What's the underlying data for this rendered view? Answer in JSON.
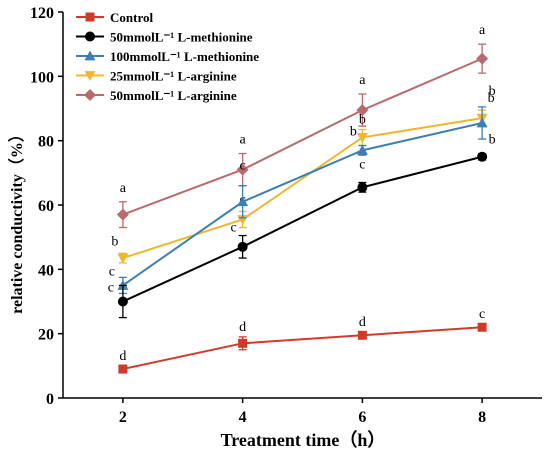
{
  "chart_data": {
    "type": "line",
    "xlabel": "Treatment time（h）",
    "ylabel": "relative conductivity（%）",
    "x": [
      2,
      4,
      6,
      8
    ],
    "xticks": [
      "2",
      "4",
      "6",
      "8"
    ],
    "xlim": [
      1,
      9
    ],
    "ylim": [
      0,
      120
    ],
    "yticks": [
      "0",
      "20",
      "40",
      "60",
      "80",
      "100",
      "120"
    ],
    "grid": false,
    "legend_position": "top-left",
    "series": [
      {
        "name": "Control",
        "legend_label": "Control",
        "color": "#d03a2c",
        "marker": "square",
        "values": [
          9,
          17,
          19.5,
          22
        ],
        "errors": [
          1,
          2,
          1,
          1
        ],
        "letters": [
          "d",
          "d",
          "d",
          "c"
        ]
      },
      {
        "name": "50mmolL-1 L-methionine",
        "legend_label": "50mmolL⁻¹  L-methionine",
        "color": "#000000",
        "marker": "circle",
        "values": [
          30,
          47,
          65.5,
          75
        ],
        "errors": [
          5,
          3.5,
          1.5,
          1
        ],
        "letters": [
          "c",
          "c",
          "c",
          "b"
        ]
      },
      {
        "name": "100mmolL-1 L-methionine",
        "legend_label": "100mmolL⁻¹  L-methionine",
        "color": "#3d7fb3",
        "marker": "triangle-up",
        "values": [
          35,
          61,
          77,
          85.5
        ],
        "errors": [
          2.5,
          5,
          1.5,
          5
        ],
        "letters": [
          "c",
          "c",
          "b",
          "b"
        ]
      },
      {
        "name": "25mmolL-1 L-arginine",
        "legend_label": "25mmolL⁻¹   L-arginine",
        "color": "#f0b72e",
        "marker": "triangle-down",
        "values": [
          43.5,
          55.5,
          81,
          87
        ],
        "errors": [
          1.5,
          2.5,
          2.5,
          2.5
        ],
        "letters": [
          "b",
          "c",
          "b",
          "b"
        ]
      },
      {
        "name": "50mmolL-1 L-arginine",
        "legend_label": "50mmolL⁻¹   L-arginine",
        "color": "#b86a6e",
        "marker": "diamond",
        "values": [
          57,
          71,
          89.5,
          105.5
        ],
        "errors": [
          4,
          5,
          5,
          4.5
        ],
        "letters": [
          "a",
          "a",
          "a",
          "a"
        ]
      }
    ]
  }
}
